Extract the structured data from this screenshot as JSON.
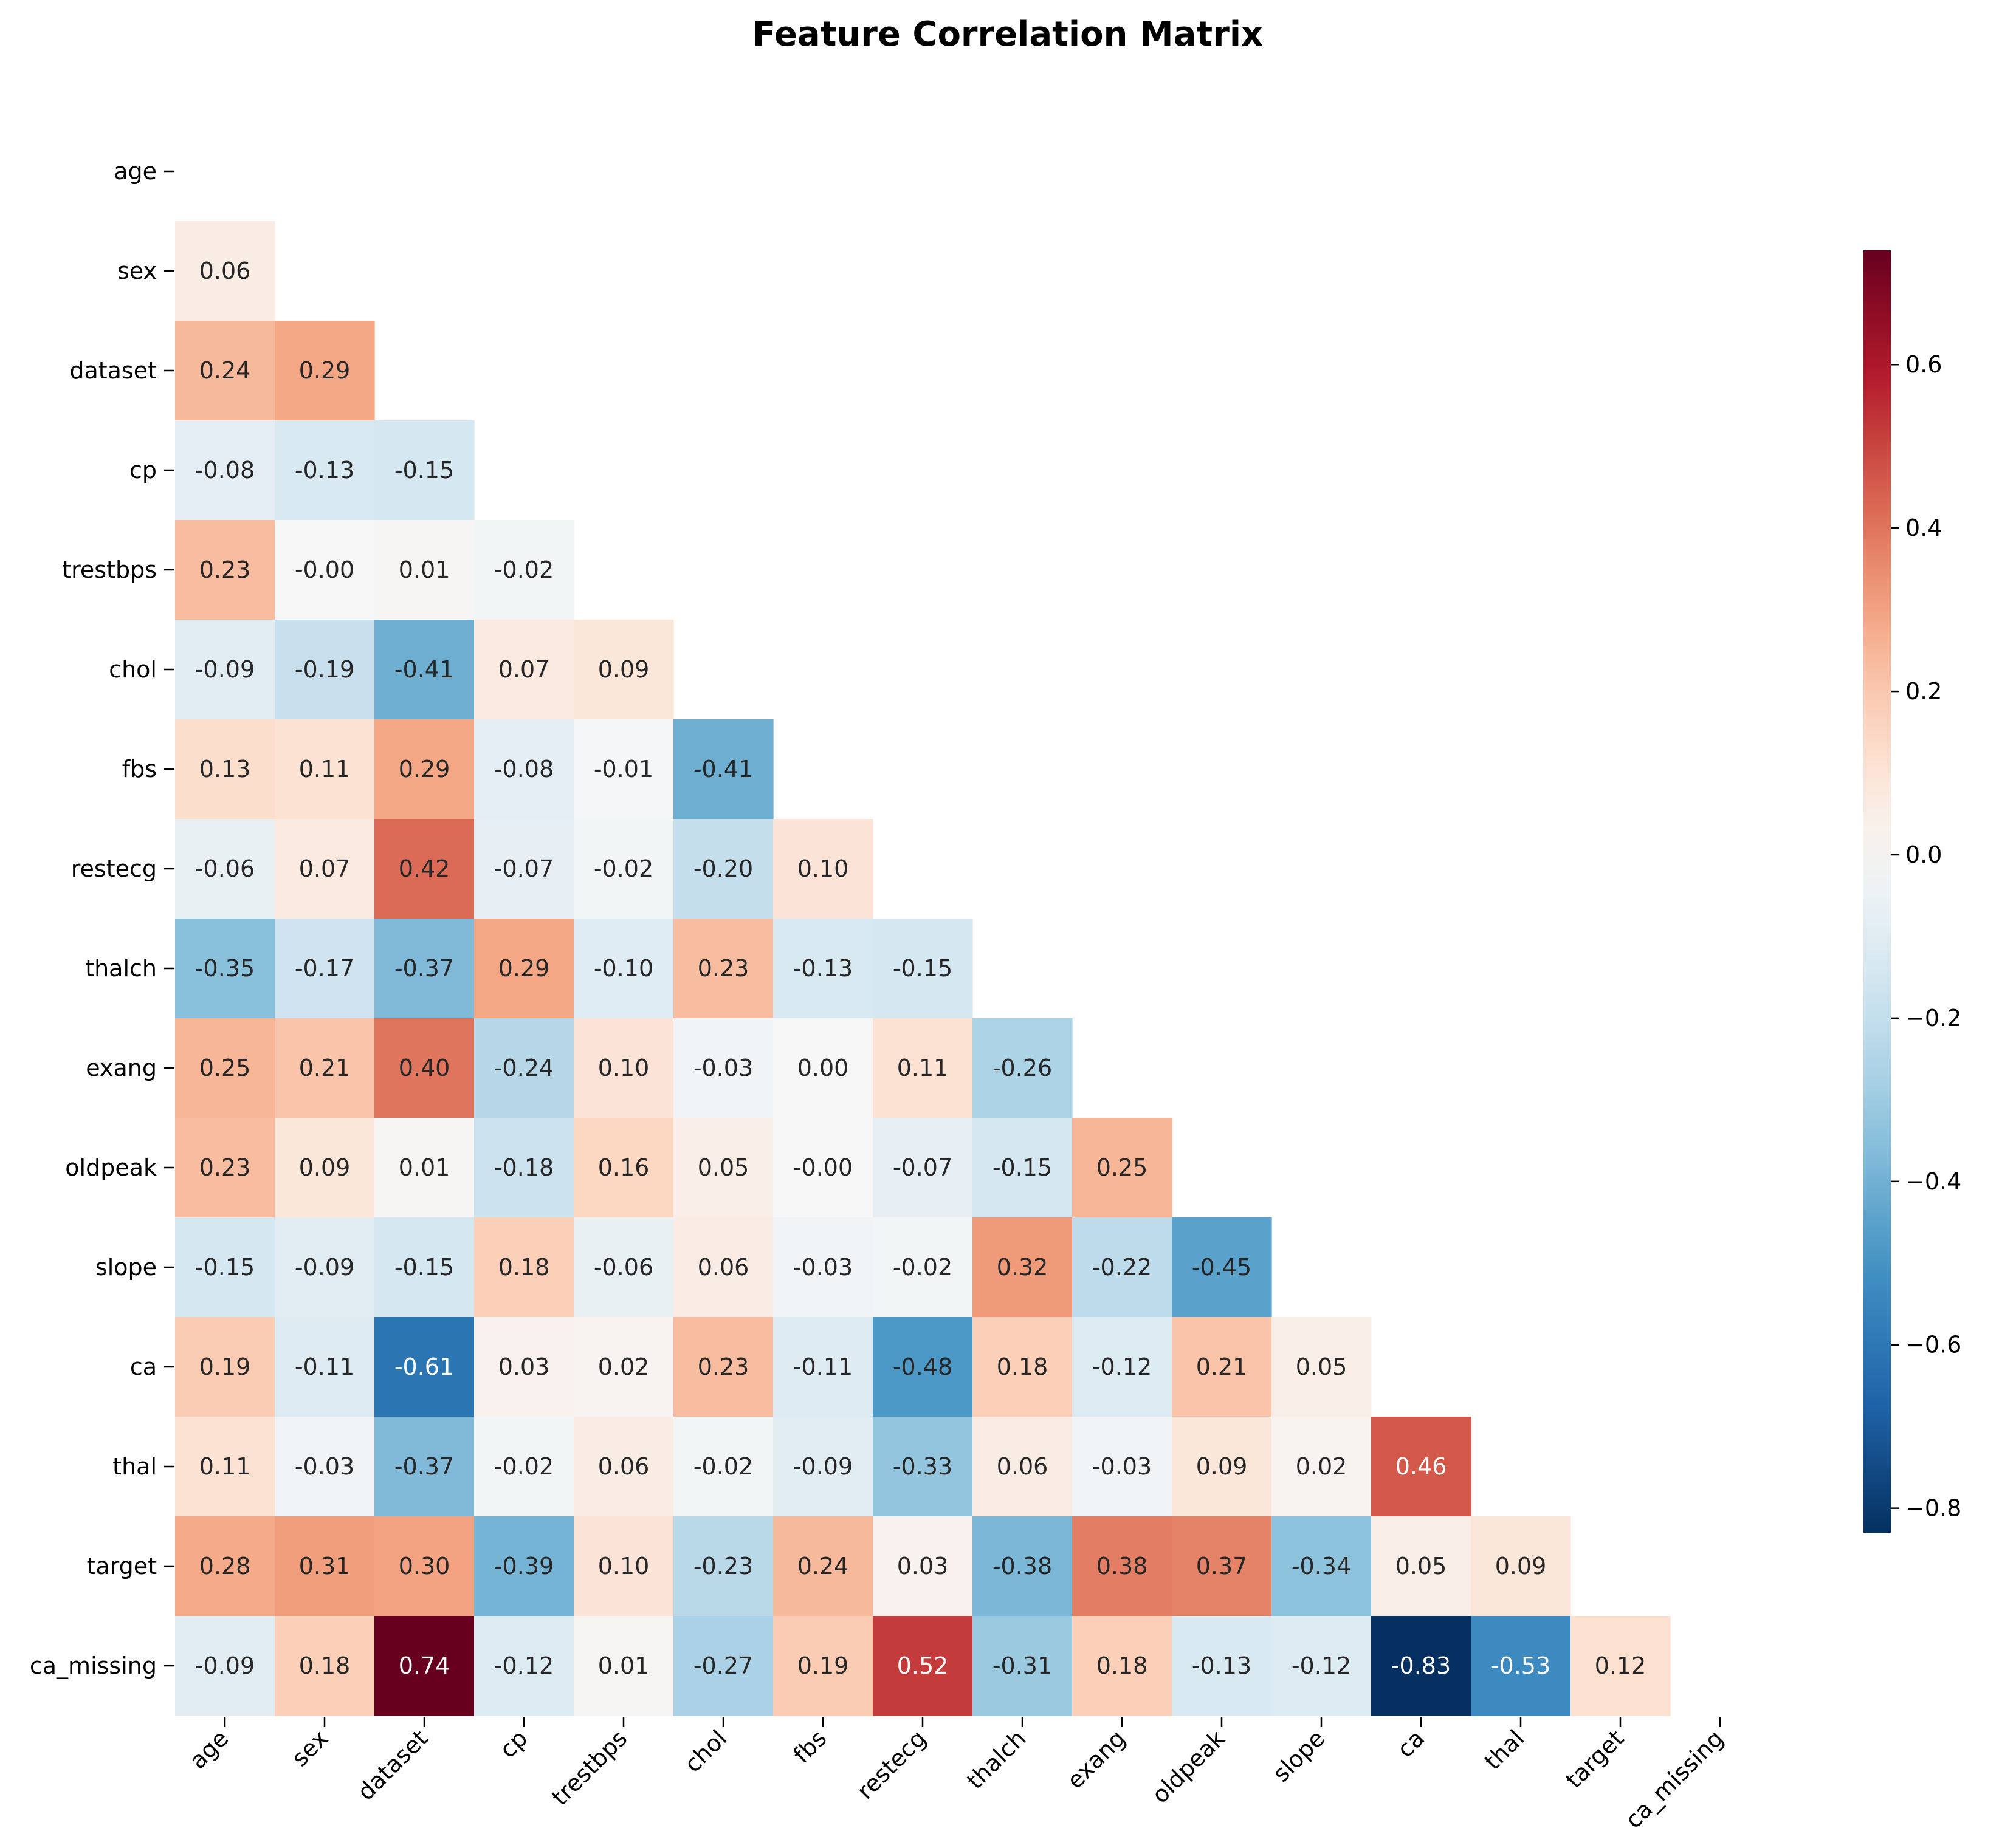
{
  "chart_data": {
    "type": "heatmap",
    "title": "Feature Correlation Matrix",
    "variables": [
      "age",
      "sex",
      "dataset",
      "cp",
      "trestbps",
      "chol",
      "fbs",
      "restecg",
      "thalch",
      "exang",
      "oldpeak",
      "slope",
      "ca",
      "thal",
      "target",
      "ca_missing"
    ],
    "mask": "upper-triangle-and-diagonal",
    "lower_triangle": [
      [],
      [
        0.06
      ],
      [
        0.24,
        0.29
      ],
      [
        -0.08,
        -0.13,
        -0.15
      ],
      [
        0.23,
        -0.0,
        0.01,
        -0.02
      ],
      [
        -0.09,
        -0.19,
        -0.41,
        0.07,
        0.09
      ],
      [
        0.13,
        0.11,
        0.29,
        -0.08,
        -0.01,
        -0.41
      ],
      [
        -0.06,
        0.07,
        0.42,
        -0.07,
        -0.02,
        -0.2,
        0.1
      ],
      [
        -0.35,
        -0.17,
        -0.37,
        0.29,
        -0.1,
        0.23,
        -0.13,
        -0.15
      ],
      [
        0.25,
        0.21,
        0.4,
        -0.24,
        0.1,
        -0.03,
        0.0,
        0.11,
        -0.26
      ],
      [
        0.23,
        0.09,
        0.01,
        -0.18,
        0.16,
        0.05,
        -0.0,
        -0.07,
        -0.15,
        0.25
      ],
      [
        -0.15,
        -0.09,
        -0.15,
        0.18,
        -0.06,
        0.06,
        -0.03,
        -0.02,
        0.32,
        -0.22,
        -0.45
      ],
      [
        0.19,
        -0.11,
        -0.61,
        0.03,
        0.02,
        0.23,
        -0.11,
        -0.48,
        0.18,
        -0.12,
        0.21,
        0.05
      ],
      [
        0.11,
        -0.03,
        -0.37,
        -0.02,
        0.06,
        -0.02,
        -0.09,
        -0.33,
        0.06,
        -0.03,
        0.09,
        0.02,
        0.46
      ],
      [
        0.28,
        0.31,
        0.3,
        -0.39,
        0.1,
        -0.23,
        0.24,
        0.03,
        -0.38,
        0.38,
        0.37,
        -0.34,
        0.05,
        0.09
      ],
      [
        -0.09,
        0.18,
        0.74,
        -0.12,
        0.01,
        -0.27,
        0.19,
        0.52,
        -0.31,
        0.18,
        -0.13,
        -0.12,
        -0.83,
        -0.53,
        0.12
      ]
    ],
    "value_format": "2 decimals",
    "colormap": "RdBu_r",
    "colorbar": {
      "range": [
        -0.83,
        0.74
      ],
      "center": 0.0,
      "ticks": [
        -0.8,
        -0.6,
        -0.4,
        -0.2,
        0.0,
        0.2,
        0.4,
        0.6
      ],
      "tick_labels": [
        "−0.8",
        "−0.6",
        "−0.4",
        "−0.2",
        "0.0",
        "0.2",
        "0.4",
        "0.6"
      ],
      "placement": "right"
    },
    "colors": {
      "min": "#053061",
      "neg_mid": "#4393c3",
      "neutral": "#f7f7f7",
      "pos_mid": "#f4a582",
      "max": "#67001f"
    }
  }
}
